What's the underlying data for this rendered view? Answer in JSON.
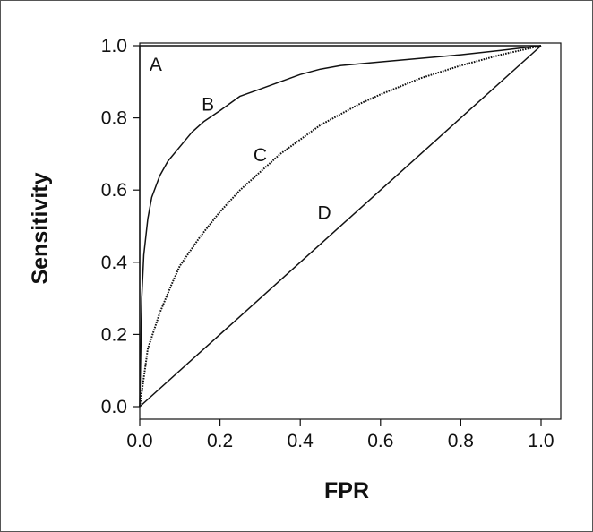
{
  "chart_data": {
    "type": "line",
    "title": "",
    "xlabel": "FPR",
    "ylabel": "Sensitivity",
    "xlim": [
      0,
      1
    ],
    "ylim": [
      0,
      1
    ],
    "x_ticks": [
      0.0,
      0.2,
      0.4,
      0.6,
      0.8,
      1.0
    ],
    "x_tick_labels": [
      "0.0",
      "0.2",
      "0.4",
      "0.6",
      "0.8",
      "1.0"
    ],
    "y_ticks": [
      0.0,
      0.2,
      0.4,
      0.6,
      0.8,
      1.0
    ],
    "y_tick_labels": [
      "0.0",
      "0.2",
      "0.4",
      "0.6",
      "0.8",
      "1.0"
    ],
    "grid": false,
    "legend": "none",
    "series": [
      {
        "label": "A",
        "label_at": [
          0.04,
          0.95
        ],
        "style": "solid",
        "points": [
          [
            0,
            0
          ],
          [
            0,
            1
          ],
          [
            1,
            1
          ]
        ]
      },
      {
        "label": "B",
        "label_at": [
          0.17,
          0.84
        ],
        "style": "solid",
        "points": [
          [
            0,
            0
          ],
          [
            0.005,
            0.3
          ],
          [
            0.01,
            0.42
          ],
          [
            0.02,
            0.52
          ],
          [
            0.03,
            0.58
          ],
          [
            0.05,
            0.64
          ],
          [
            0.07,
            0.68
          ],
          [
            0.1,
            0.72
          ],
          [
            0.13,
            0.76
          ],
          [
            0.16,
            0.79
          ],
          [
            0.2,
            0.82
          ],
          [
            0.25,
            0.86
          ],
          [
            0.3,
            0.88
          ],
          [
            0.35,
            0.9
          ],
          [
            0.4,
            0.92
          ],
          [
            0.45,
            0.935
          ],
          [
            0.5,
            0.945
          ],
          [
            0.6,
            0.955
          ],
          [
            0.7,
            0.965
          ],
          [
            0.8,
            0.975
          ],
          [
            0.9,
            0.987
          ],
          [
            1.0,
            1.0
          ]
        ]
      },
      {
        "label": "C",
        "label_at": [
          0.3,
          0.7
        ],
        "style": "dotted",
        "points": [
          [
            0,
            0
          ],
          [
            0.02,
            0.16
          ],
          [
            0.05,
            0.26
          ],
          [
            0.08,
            0.34
          ],
          [
            0.1,
            0.39
          ],
          [
            0.15,
            0.47
          ],
          [
            0.2,
            0.54
          ],
          [
            0.25,
            0.6
          ],
          [
            0.3,
            0.65
          ],
          [
            0.35,
            0.7
          ],
          [
            0.4,
            0.74
          ],
          [
            0.45,
            0.78
          ],
          [
            0.5,
            0.81
          ],
          [
            0.55,
            0.84
          ],
          [
            0.6,
            0.865
          ],
          [
            0.7,
            0.91
          ],
          [
            0.8,
            0.945
          ],
          [
            0.9,
            0.975
          ],
          [
            1.0,
            1.0
          ]
        ]
      },
      {
        "label": "D",
        "label_at": [
          0.46,
          0.54
        ],
        "style": "solid",
        "points": [
          [
            0,
            0
          ],
          [
            1,
            1
          ]
        ]
      }
    ]
  }
}
